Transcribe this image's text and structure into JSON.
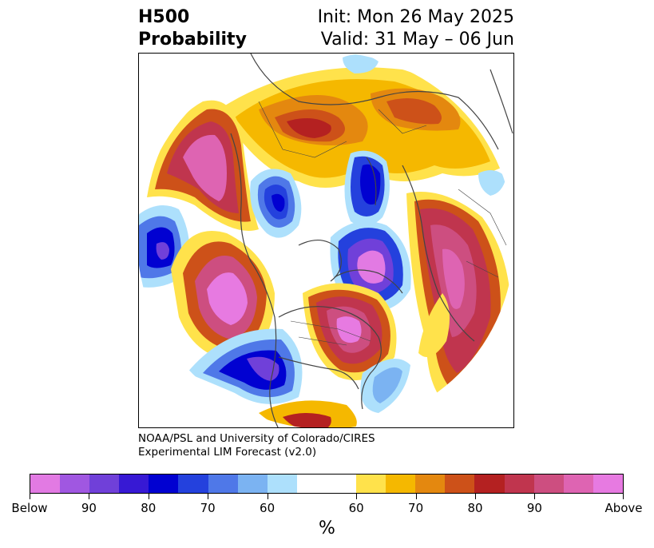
{
  "header": {
    "title_line1": "H500",
    "title_line2": "Probability",
    "init": "Init: Mon 26 May 2025",
    "valid": "Valid: 31 May – 06 Jun"
  },
  "credit": {
    "line1": "NOAA/PSL and University of Colorado/CIRES",
    "line2": "Experimental LIM Forecast (v2.0)"
  },
  "colorbar": {
    "label": "%",
    "colors": [
      "#e27ae3",
      "#a057e1",
      "#7040d9",
      "#3719d4",
      "#0101d1",
      "#2441dd",
      "#4f78e8",
      "#7bb3f2",
      "#ade0fc",
      "#ffffff",
      "#ffffff",
      "#ffe24b",
      "#f5b800",
      "#e4880f",
      "#cd5119",
      "#b42121",
      "#c0354e",
      "#cd4e80",
      "#de64b2",
      "#e77ae1"
    ],
    "ticks": [
      "Below",
      "90",
      "80",
      "70",
      "60",
      "60",
      "70",
      "80",
      "90",
      "Above"
    ]
  },
  "map": {
    "colors": {
      "above_pink": "#e77ae1",
      "above_magenta": "#cd4e80",
      "above_crimson": "#c0354e",
      "above_red": "#b42121",
      "above_orange": "#cd5119",
      "above_gold": "#f5b800",
      "above_yellow": "#ffe24b",
      "below_light": "#ade0fc",
      "below_sky": "#7bb3f2",
      "below_blue": "#2441dd",
      "below_navy": "#0101d1",
      "below_violet": "#7040d9",
      "coastline": "#444444"
    }
  }
}
